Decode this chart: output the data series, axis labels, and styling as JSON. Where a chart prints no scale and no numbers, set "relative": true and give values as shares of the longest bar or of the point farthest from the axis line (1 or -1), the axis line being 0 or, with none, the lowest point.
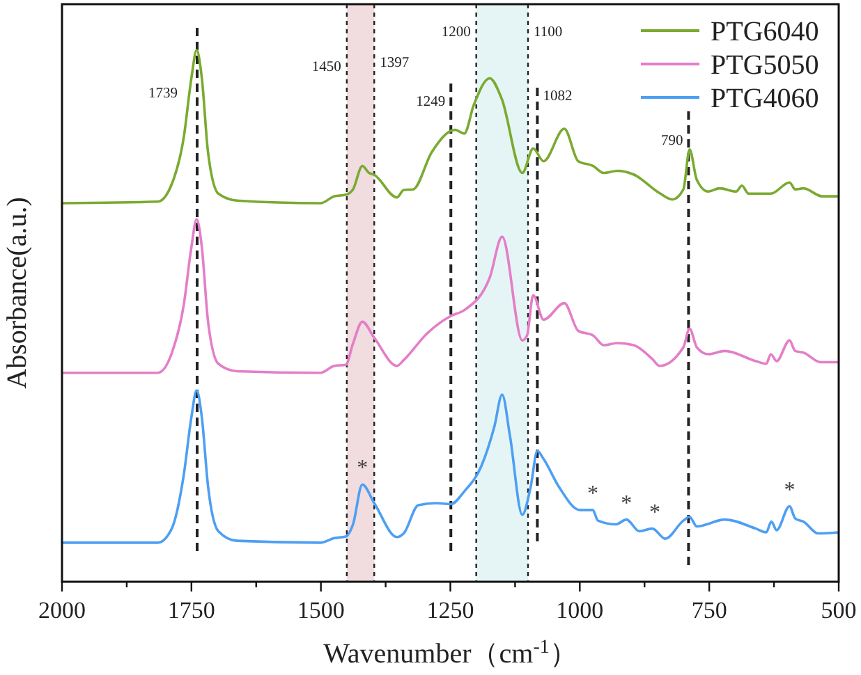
{
  "chart_data": {
    "type": "line",
    "relative": true,
    "xlabel": "Wavenumber（cm$^{-1}$）",
    "ylabel": "Absorbance(a.u.)",
    "xlim": [
      2000,
      500
    ],
    "xticks": [
      2000,
      {
        "value": 1875,
        "label": null
      },
      1750,
      {
        "value": 1625,
        "label": null
      },
      1500,
      {
        "value": 1375,
        "label": null
      },
      1250,
      {
        "value": 1125,
        "label": null
      },
      1000,
      {
        "value": 875,
        "label": null
      },
      750,
      {
        "value": 625,
        "label": null
      },
      500
    ],
    "grid": false,
    "legend": "top right",
    "line_style": "solid",
    "series": [
      {
        "name": "PTG6040",
        "color": "#7aaa30",
        "x": [
          2000,
          1815,
          1788,
          1765,
          1750,
          1740,
          1730,
          1718,
          1698,
          1662,
          1501,
          1474,
          1452,
          1438,
          1420,
          1407,
          1398,
          1353,
          1340,
          1322,
          1286,
          1241,
          1223,
          1205,
          1174,
          1151,
          1111,
          1090,
          1070,
          1030,
          1003,
          974,
          954,
          927,
          896,
          846,
          821,
          800,
          788,
          774,
          752,
          730,
          698,
          687,
          674,
          631,
          595,
          584,
          568,
          532,
          500
        ],
        "values": [
          0.712,
          0.715,
          0.748,
          0.835,
          0.948,
          1.0,
          0.948,
          0.808,
          0.73,
          0.717,
          0.712,
          0.725,
          0.728,
          0.738,
          0.782,
          0.769,
          0.766,
          0.723,
          0.737,
          0.738,
          0.808,
          0.85,
          0.843,
          0.896,
          0.947,
          0.909,
          0.769,
          0.815,
          0.791,
          0.852,
          0.791,
          0.782,
          0.769,
          0.773,
          0.766,
          0.731,
          0.719,
          0.738,
          0.813,
          0.756,
          0.734,
          0.74,
          0.734,
          0.745,
          0.73,
          0.73,
          0.751,
          0.738,
          0.74,
          0.725,
          0.725
        ]
      },
      {
        "name": "PTG5050",
        "color": "#e47ec8",
        "x": [
          2000,
          1815,
          1788,
          1765,
          1750,
          1740,
          1730,
          1718,
          1698,
          1662,
          1501,
          1474,
          1452,
          1438,
          1420,
          1397,
          1353,
          1340,
          1295,
          1249,
          1223,
          1174,
          1150,
          1111,
          1102,
          1090,
          1070,
          1030,
          1003,
          974,
          954,
          927,
          896,
          860,
          846,
          800,
          788,
          774,
          752,
          720,
          660,
          640,
          631,
          620,
          595,
          584,
          568,
          535,
          500
        ],
        "values": [
          0.393,
          0.393,
          0.43,
          0.52,
          0.63,
          0.682,
          0.63,
          0.49,
          0.41,
          0.396,
          0.393,
          0.406,
          0.408,
          0.448,
          0.489,
          0.459,
          0.406,
          0.417,
          0.467,
          0.5,
          0.511,
          0.572,
          0.649,
          0.454,
          0.463,
          0.539,
          0.493,
          0.524,
          0.472,
          0.463,
          0.445,
          0.449,
          0.445,
          0.419,
          0.406,
          0.441,
          0.476,
          0.441,
          0.428,
          0.434,
          0.415,
          0.41,
          0.428,
          0.415,
          0.454,
          0.434,
          0.431,
          0.413,
          0.413
        ]
      },
      {
        "name": "PTG4060",
        "color": "#4d9ff3",
        "x": [
          2000,
          1815,
          1788,
          1765,
          1750,
          1740,
          1730,
          1718,
          1698,
          1662,
          1501,
          1474,
          1452,
          1438,
          1420,
          1397,
          1353,
          1340,
          1312,
          1277,
          1249,
          1223,
          1190,
          1165,
          1150,
          1135,
          1111,
          1095,
          1082,
          1070,
          1040,
          1000,
          975,
          965,
          930,
          910,
          885,
          860,
          835,
          800,
          788,
          774,
          720,
          660,
          640,
          630,
          620,
          595,
          584,
          568,
          540,
          500
        ],
        "values": [
          0.0735,
          0.0735,
          0.1,
          0.2,
          0.31,
          0.36,
          0.31,
          0.18,
          0.095,
          0.077,
          0.0735,
          0.082,
          0.085,
          0.108,
          0.183,
          0.148,
          0.084,
          0.091,
          0.144,
          0.148,
          0.146,
          0.17,
          0.218,
          0.292,
          0.352,
          0.275,
          0.126,
          0.178,
          0.246,
          0.231,
          0.178,
          0.135,
          0.135,
          0.115,
          0.108,
          0.117,
          0.095,
          0.1,
          0.081,
          0.115,
          0.122,
          0.104,
          0.117,
          0.1,
          0.093,
          0.113,
          0.097,
          0.142,
          0.119,
          0.113,
          0.091,
          0.093
        ]
      }
    ],
    "bands": [
      {
        "axis": "x",
        "from": 1450,
        "to": 1397,
        "color": "#f1dcdf"
      },
      {
        "axis": "x",
        "from": 1200,
        "to": 1100,
        "color": "#e5f5f5"
      }
    ],
    "ref_lines": [
      {
        "axis": "x",
        "value": 1739,
        "label": "1739",
        "line_style": "dashed"
      },
      {
        "axis": "x",
        "value": 1450,
        "label": "1450",
        "line_style": "dotted"
      },
      {
        "axis": "x",
        "value": 1397,
        "label": "1397",
        "line_style": "dotted"
      },
      {
        "axis": "x",
        "value": 1249,
        "label": "1249",
        "line_style": "dashed"
      },
      {
        "axis": "x",
        "value": 1200,
        "label": "1200",
        "line_style": "dotted"
      },
      {
        "axis": "x",
        "value": 1100,
        "label": "1100",
        "line_style": "dotted"
      },
      {
        "axis": "x",
        "value": 1082,
        "label": "1082",
        "line_style": "dashed"
      },
      {
        "axis": "x",
        "value": 790,
        "label": "790",
        "line_style": "dashed"
      }
    ],
    "annotations": [
      {
        "text": "*",
        "x": 1420,
        "y": 0.183
      },
      {
        "text": "*",
        "x": 975,
        "y": 0.135
      },
      {
        "text": "*",
        "x": 910,
        "y": 0.117
      },
      {
        "text": "*",
        "x": 855,
        "y": 0.1
      },
      {
        "text": "*",
        "x": 595,
        "y": 0.142
      }
    ]
  }
}
